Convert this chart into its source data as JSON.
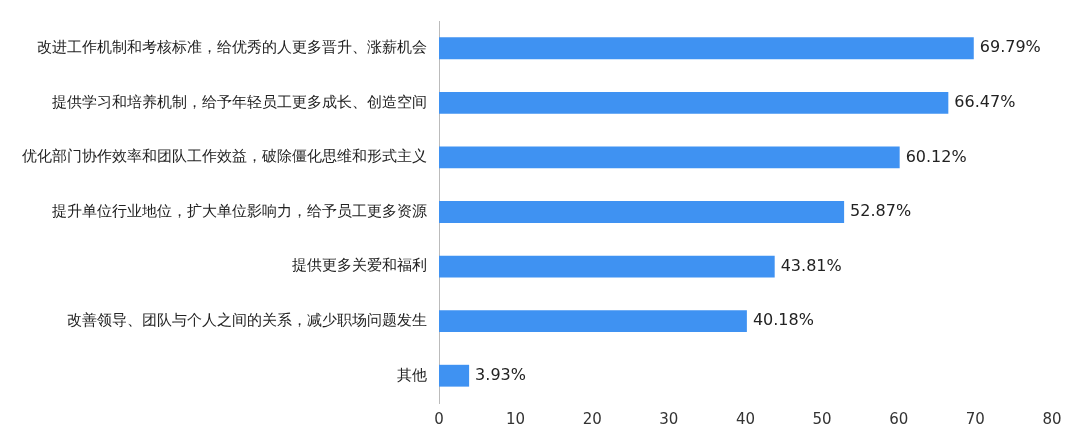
{
  "chart_data": {
    "type": "bar",
    "orientation": "horizontal",
    "categories": [
      "改进工作机制和考核标准，给优秀的人更多晋升、涨薪机会",
      "提供学习和培养机制，给予年轻员工更多成长、创造空间",
      "优化部门协作效率和团队工作效益，破除僵化思维和形式主义",
      "提升单位行业地位，扩大单位影响力，给予员工更多资源",
      "提供更多关爱和福利",
      "改善领导、团队与个人之间的关系，减少职场问题发生",
      "其他"
    ],
    "values": [
      69.79,
      66.47,
      60.12,
      52.87,
      43.81,
      40.18,
      3.93
    ],
    "value_labels": [
      "69.79%",
      "66.47%",
      "60.12%",
      "52.87%",
      "43.81%",
      "40.18%",
      "3.93%"
    ],
    "color": "#3f92f2",
    "xlim": [
      0,
      80
    ],
    "xticks": [
      0,
      10,
      20,
      30,
      40,
      50,
      60,
      70,
      80
    ],
    "grid": false,
    "legend": false
  }
}
